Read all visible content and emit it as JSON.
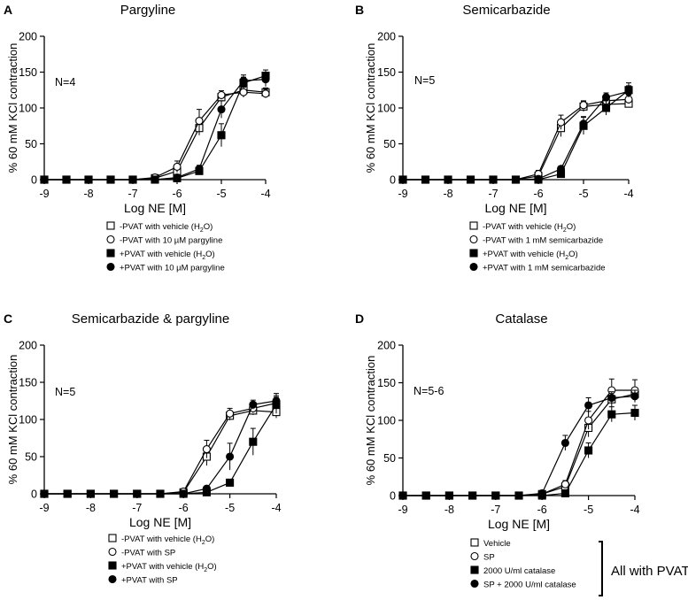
{
  "figure": {
    "ylabel": "% 60 mM KCl contraction",
    "xlabel": "Log NE [M]",
    "bracket_label": "All with PVAT"
  },
  "chart_data": [
    {
      "type": "line",
      "panel": "A",
      "title": "Pargyline",
      "n_label": "N=4",
      "xlabel": "Log NE [M]",
      "ylabel": "% 60 mM KCl contraction",
      "xlim": [
        -9,
        -4
      ],
      "ylim": [
        0,
        200
      ],
      "xticks": [
        -9,
        -8,
        -7,
        -6,
        -5,
        -4
      ],
      "yticks": [
        0,
        50,
        100,
        150,
        200
      ],
      "x": [
        -9,
        -8.5,
        -8,
        -7.5,
        -7,
        -6.5,
        -6,
        -5.5,
        -5,
        -4.5,
        -4
      ],
      "series": [
        {
          "name": "-PVAT with vehicle (H2O)",
          "legend": [
            "-PVAT with vehicle (H",
            "2",
            "O)"
          ],
          "marker": "square-open",
          "values": [
            0,
            0,
            0,
            0,
            0,
            2,
            12,
            72,
            115,
            125,
            122
          ],
          "errors": [
            0,
            0,
            0,
            0,
            0,
            3,
            6,
            10,
            6,
            8,
            6
          ]
        },
        {
          "name": "-PVAT with 10 µM pargyline",
          "legend": [
            "-PVAT with 10 µM pargyline",
            "",
            ""
          ],
          "marker": "circle-open",
          "values": [
            0,
            0,
            0,
            0,
            0,
            3,
            18,
            82,
            118,
            122,
            120
          ],
          "errors": [
            0,
            0,
            0,
            0,
            0,
            4,
            8,
            16,
            6,
            7,
            6
          ]
        },
        {
          "name": "+PVAT with vehicle (H2O)",
          "legend": [
            "+PVAT with vehicle (H",
            "2",
            "O)"
          ],
          "marker": "square-filled",
          "values": [
            0,
            0,
            0,
            0,
            0,
            0,
            2,
            12,
            62,
            135,
            145
          ],
          "errors": [
            0,
            0,
            0,
            0,
            0,
            0,
            2,
            5,
            16,
            8,
            8
          ]
        },
        {
          "name": "+PVAT with 10 µM pargyline",
          "legend": [
            "+PVAT with 10 µM pargyline",
            "",
            ""
          ],
          "marker": "circle-filled",
          "values": [
            0,
            0,
            0,
            0,
            0,
            0,
            3,
            15,
            98,
            138,
            140
          ],
          "errors": [
            0,
            0,
            0,
            0,
            0,
            0,
            2,
            5,
            12,
            8,
            10
          ]
        }
      ]
    },
    {
      "type": "line",
      "panel": "B",
      "title": "Semicarbazide",
      "n_label": "N=5",
      "xlabel": "Log NE [M]",
      "ylabel": "% 60 mM KCl contraction",
      "xlim": [
        -9,
        -4
      ],
      "ylim": [
        0,
        200
      ],
      "xticks": [
        -9,
        -8,
        -7,
        -6,
        -5,
        -4
      ],
      "yticks": [
        0,
        50,
        100,
        150,
        200
      ],
      "x": [
        -9,
        -8.5,
        -8,
        -7.5,
        -7,
        -6.5,
        -6,
        -5.5,
        -5,
        -4.5,
        -4
      ],
      "series": [
        {
          "name": "-PVAT with vehicle (H2O)",
          "legend": [
            "-PVAT with vehicle (H",
            "2",
            "O)"
          ],
          "marker": "square-open",
          "values": [
            0,
            0,
            0,
            0,
            0,
            0,
            5,
            72,
            102,
            105,
            106
          ],
          "errors": [
            0,
            0,
            0,
            0,
            0,
            0,
            4,
            12,
            7,
            6,
            5
          ]
        },
        {
          "name": "-PVAT with 1 mM semicarbazide",
          "legend": [
            "-PVAT with 1 mM semicarbazide",
            "",
            ""
          ],
          "marker": "circle-open",
          "values": [
            0,
            0,
            0,
            0,
            0,
            0,
            8,
            80,
            104,
            110,
            112
          ],
          "errors": [
            0,
            0,
            0,
            0,
            0,
            0,
            5,
            10,
            6,
            6,
            6
          ]
        },
        {
          "name": "+PVAT with vehicle (H2O)",
          "legend": [
            "+PVAT with vehicle (H",
            "2",
            "O)"
          ],
          "marker": "square-filled",
          "values": [
            0,
            0,
            0,
            0,
            0,
            0,
            0,
            8,
            75,
            100,
            125
          ],
          "errors": [
            0,
            0,
            0,
            0,
            0,
            0,
            1,
            3,
            12,
            10,
            10
          ]
        },
        {
          "name": "+PVAT with 1 mM semicarbazide",
          "legend": [
            "+PVAT with 1 mM semicarbazide",
            "",
            ""
          ],
          "marker": "circle-filled",
          "values": [
            0,
            0,
            0,
            0,
            0,
            0,
            1,
            15,
            78,
            115,
            123
          ],
          "errors": [
            0,
            0,
            0,
            0,
            0,
            0,
            1,
            4,
            10,
            6,
            8
          ]
        }
      ]
    },
    {
      "type": "line",
      "panel": "C",
      "title": "Semicarbazide & pargyline",
      "n_label": "N=5",
      "xlabel": "Log NE [M]",
      "ylabel": "% 60 mM KCl contraction",
      "xlim": [
        -9,
        -4
      ],
      "ylim": [
        0,
        200
      ],
      "xticks": [
        -9,
        -8,
        -7,
        -6,
        -5,
        -4
      ],
      "yticks": [
        0,
        50,
        100,
        150,
        200
      ],
      "x": [
        -9,
        -8.5,
        -8,
        -7.5,
        -7,
        -6.5,
        -6,
        -5.5,
        -5,
        -4.5,
        -4
      ],
      "series": [
        {
          "name": "-PVAT with vehicle (H2O)",
          "legend": [
            "-PVAT with vehicle (H",
            "2",
            "O)"
          ],
          "marker": "square-open",
          "values": [
            0,
            0,
            0,
            0,
            0,
            0,
            2,
            50,
            105,
            112,
            110
          ],
          "errors": [
            0,
            0,
            0,
            0,
            0,
            0,
            2,
            12,
            6,
            6,
            8
          ]
        },
        {
          "name": "-PVAT with SP",
          "legend": [
            "-PVAT with SP",
            "",
            ""
          ],
          "marker": "circle-open",
          "values": [
            0,
            0,
            0,
            0,
            0,
            0,
            3,
            60,
            108,
            115,
            122
          ],
          "errors": [
            0,
            0,
            0,
            0,
            0,
            0,
            2,
            12,
            7,
            6,
            8
          ]
        },
        {
          "name": "+PVAT with vehicle (H2O)",
          "legend": [
            "+PVAT with vehicle (H",
            "2",
            "O)"
          ],
          "marker": "square-filled",
          "values": [
            0,
            0,
            0,
            0,
            0,
            0,
            0,
            2,
            15,
            70,
            120
          ],
          "errors": [
            0,
            0,
            0,
            0,
            0,
            0,
            0,
            2,
            4,
            18,
            12
          ]
        },
        {
          "name": "+PVAT with SP",
          "legend": [
            "+PVAT with SP",
            "",
            ""
          ],
          "marker": "circle-filled",
          "values": [
            0,
            0,
            0,
            0,
            0,
            0,
            0,
            7,
            50,
            120,
            125
          ],
          "errors": [
            0,
            0,
            0,
            0,
            0,
            0,
            0,
            3,
            18,
            6,
            10
          ]
        }
      ]
    },
    {
      "type": "line",
      "panel": "D",
      "title": "Catalase",
      "n_label": "N=5-6",
      "xlabel": "Log NE [M]",
      "ylabel": "% 60 mM KCl contraction",
      "xlim": [
        -9,
        -4
      ],
      "ylim": [
        0,
        200
      ],
      "xticks": [
        -9,
        -8,
        -7,
        -6,
        -5,
        -4
      ],
      "yticks": [
        0,
        50,
        100,
        150,
        200
      ],
      "x": [
        -9,
        -8.5,
        -8,
        -7.5,
        -7,
        -6.5,
        -6,
        -5.5,
        -5,
        -4.5,
        -4
      ],
      "series": [
        {
          "name": "Vehicle",
          "legend": [
            "Vehicle",
            "",
            ""
          ],
          "marker": "square-open",
          "values": [
            0,
            0,
            0,
            0,
            0,
            0,
            2,
            12,
            90,
            128,
            135
          ],
          "errors": [
            0,
            0,
            0,
            0,
            0,
            0,
            2,
            5,
            12,
            10,
            8
          ]
        },
        {
          "name": "SP",
          "legend": [
            "SP",
            "",
            ""
          ],
          "marker": "circle-open",
          "values": [
            0,
            0,
            0,
            0,
            0,
            0,
            2,
            15,
            100,
            140,
            140
          ],
          "errors": [
            0,
            0,
            0,
            0,
            0,
            0,
            2,
            5,
            12,
            15,
            14
          ]
        },
        {
          "name": "2000 U/ml catalase",
          "legend": [
            "2000 U/ml catalase",
            "",
            ""
          ],
          "marker": "square-filled",
          "values": [
            0,
            0,
            0,
            0,
            0,
            0,
            0,
            3,
            60,
            108,
            110
          ],
          "errors": [
            0,
            0,
            0,
            0,
            0,
            0,
            0,
            2,
            10,
            10,
            10
          ]
        },
        {
          "name": "SP + 2000 U/ml catalase",
          "legend": [
            "SP + 2000 U/ml catalase",
            "",
            ""
          ],
          "marker": "circle-filled",
          "values": [
            0,
            0,
            0,
            0,
            0,
            0,
            3,
            70,
            120,
            130,
            132
          ],
          "errors": [
            0,
            0,
            0,
            0,
            0,
            0,
            2,
            10,
            10,
            8,
            8
          ]
        }
      ]
    }
  ]
}
